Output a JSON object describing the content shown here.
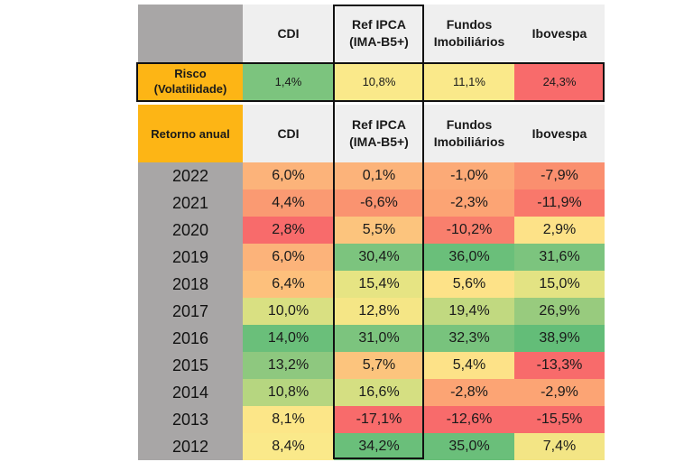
{
  "header": {
    "columns": [
      "CDI",
      "Ref IPCA\n(IMA-B5+)",
      "Fundos\nImobiliários",
      "Ibovespa"
    ]
  },
  "risk": {
    "label": "Risco\n(Volatilidade)",
    "values": [
      "1,4%",
      "10,8%",
      "11,1%",
      "24,3%"
    ],
    "colors": [
      "#7cc47e",
      "#fae98a",
      "#fae98a",
      "#f86b6b"
    ]
  },
  "returns": {
    "label": "Retorno anual",
    "columns": [
      "CDI",
      "Ref IPCA\n(IMA-B5+)",
      "Fundos\nImobiliários",
      "Ibovespa"
    ],
    "rows": [
      {
        "year": "2022",
        "values": [
          "6,0%",
          "0,1%",
          "-1,0%",
          "-7,9%"
        ],
        "colors": [
          "#fcb37a",
          "#fcb37a",
          "#fcaa77",
          "#fa8f6f"
        ]
      },
      {
        "year": "2021",
        "values": [
          "4,4%",
          "-6,6%",
          "-2,3%",
          "-11,9%"
        ],
        "colors": [
          "#fa9a72",
          "#fa9370",
          "#fca474",
          "#f9786b"
        ]
      },
      {
        "year": "2020",
        "values": [
          "2,8%",
          "5,5%",
          "-10,2%",
          "2,9%"
        ],
        "colors": [
          "#f86b6b",
          "#fcc47d",
          "#f97f6d",
          "#fde288"
        ]
      },
      {
        "year": "2019",
        "values": [
          "6,0%",
          "30,4%",
          "36,0%",
          "31,6%"
        ],
        "colors": [
          "#fcb37a",
          "#7cc47e",
          "#6abf7a",
          "#7cc47e"
        ]
      },
      {
        "year": "2018",
        "values": [
          "6,4%",
          "15,4%",
          "5,6%",
          "15,0%"
        ],
        "colors": [
          "#fdc07c",
          "#e6e483",
          "#fde288",
          "#e3e383"
        ]
      },
      {
        "year": "2017",
        "values": [
          "10,0%",
          "12,8%",
          "19,4%",
          "26,9%"
        ],
        "colors": [
          "#d9e082",
          "#f5e686",
          "#c1d980",
          "#98cb7e"
        ]
      },
      {
        "year": "2016",
        "values": [
          "14,0%",
          "31,0%",
          "32,3%",
          "38,9%"
        ],
        "colors": [
          "#6abf7a",
          "#7cc47e",
          "#78c37d",
          "#63bd78"
        ]
      },
      {
        "year": "2015",
        "values": [
          "13,2%",
          "5,7%",
          "5,4%",
          "-13,3%"
        ],
        "colors": [
          "#8ec87f",
          "#fcc47d",
          "#fde288",
          "#f86b6b"
        ]
      },
      {
        "year": "2014",
        "values": [
          "10,8%",
          "16,6%",
          "-2,8%",
          "-2,9%"
        ],
        "colors": [
          "#b6d680",
          "#d5df82",
          "#fca474",
          "#fca474"
        ]
      },
      {
        "year": "2013",
        "values": [
          "8,1%",
          "-17,1%",
          "-12,6%",
          "-15,5%"
        ],
        "colors": [
          "#fce688",
          "#f86b6b",
          "#f86b6b",
          "#f86b6b"
        ]
      },
      {
        "year": "2012",
        "values": [
          "8,4%",
          "34,2%",
          "35,0%",
          "7,4%"
        ],
        "colors": [
          "#fae98a",
          "#6abf7a",
          "#6abf7a",
          "#f3e585"
        ]
      }
    ]
  }
}
